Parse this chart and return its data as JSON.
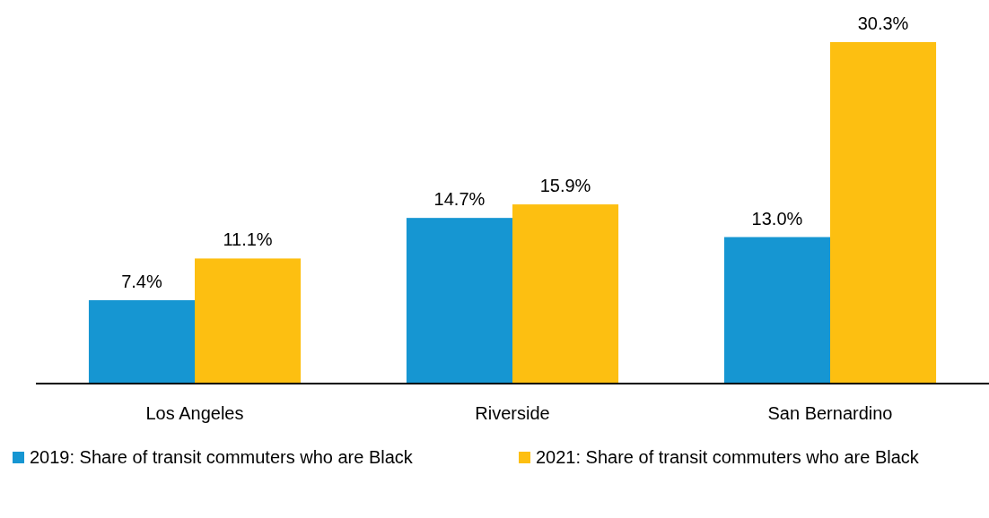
{
  "chart_data": {
    "type": "bar",
    "categories": [
      "Los Angeles",
      "Riverside",
      "San Bernardino"
    ],
    "series": [
      {
        "name": "2019: Share of transit commuters who are Black",
        "color": "#1696d2",
        "values": [
          7.4,
          14.7,
          13.0
        ],
        "value_labels": [
          "7.4%",
          "14.7%",
          "13.0%"
        ]
      },
      {
        "name": "2021: Share of transit commuters who are Black",
        "color": "#fdbf11",
        "values": [
          11.1,
          15.9,
          30.3
        ],
        "value_labels": [
          "11.1%",
          "15.9%",
          "30.3%"
        ]
      }
    ],
    "legend": "bottom"
  }
}
